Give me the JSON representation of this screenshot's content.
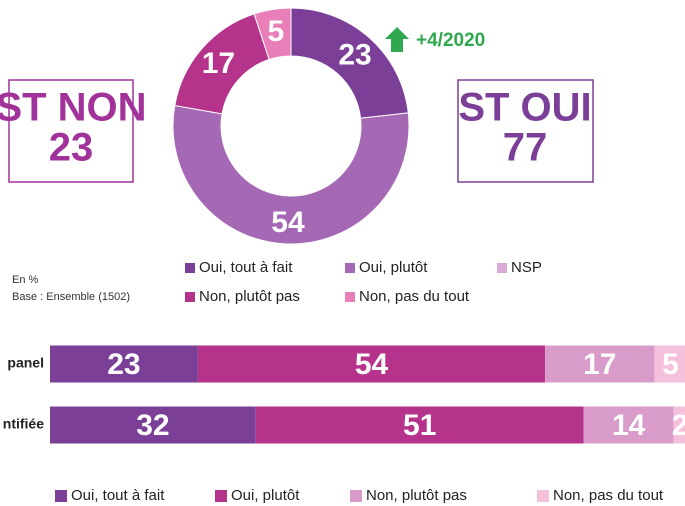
{
  "chart_data": [
    {
      "type": "donut",
      "categories": [
        "Oui, tout à fait",
        "Oui, plutôt",
        "Non, plutôt pas",
        "Non, pas du tout"
      ],
      "values": [
        23,
        54,
        17,
        5
      ],
      "colors": [
        "#7b3f98",
        "#a468b4",
        "#b5338a",
        "#e97fb8"
      ],
      "legend": [
        {
          "label": "Oui, tout à fait",
          "color": "#7b3f98"
        },
        {
          "label": "Oui, plutôt",
          "color": "#a468b4"
        },
        {
          "label": "NSP",
          "color": "#dcaad6"
        },
        {
          "label": "Non, plutôt pas",
          "color": "#b5338a"
        },
        {
          "label": "Non, pas du tout",
          "color": "#e97fb8"
        }
      ],
      "st_non": {
        "label": "ST NON",
        "value": 23
      },
      "st_oui": {
        "label": "ST OUI",
        "value": 77
      },
      "annotation": "+4/2020",
      "unit_note": "En %",
      "base_note": "Base : Ensemble (1502)"
    },
    {
      "type": "stacked_barh",
      "categories": [
        "panel",
        "ntifiée"
      ],
      "series": [
        {
          "name": "Oui, tout à fait",
          "color": "#7b3f98",
          "values": [
            23,
            32
          ]
        },
        {
          "name": "Oui, plutôt",
          "color": "#b5338a",
          "values": [
            54,
            51
          ]
        },
        {
          "name": "Non, plutôt pas",
          "color": "#d99bc9",
          "values": [
            17,
            14
          ]
        },
        {
          "name": "Non, pas du tout",
          "color": "#f5c0dc",
          "values": [
            5,
            2
          ]
        }
      ],
      "xlim": [
        0,
        100
      ]
    }
  ]
}
